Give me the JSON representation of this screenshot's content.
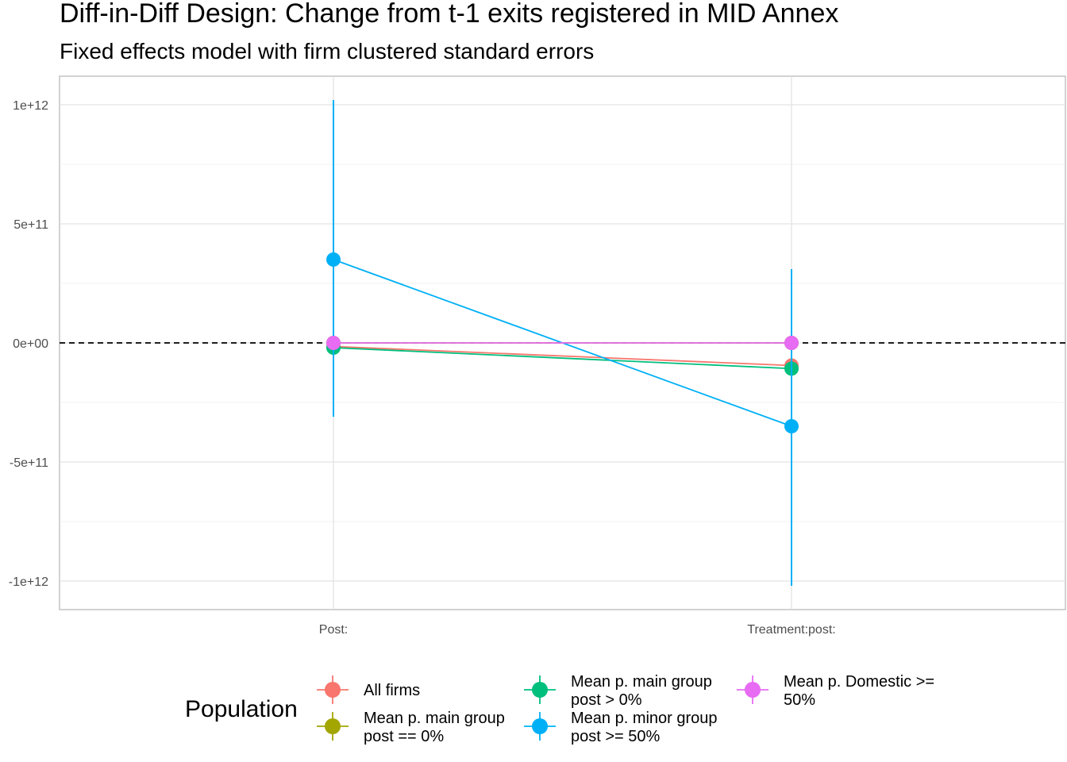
{
  "chart_data": {
    "type": "scatter",
    "title": "Diff-in-Diff Design: Change from t-1 exits registered in MID Annex",
    "subtitle": "Fixed effects model with firm clustered standard errors",
    "xlabel": "",
    "ylabel": "",
    "categories": [
      "Post:",
      "Treatment:post:"
    ],
    "ylim": [
      -1120000000000.0,
      1120000000000.0
    ],
    "y_ticks": [
      1000000000000.0,
      500000000000.0,
      0,
      -500000000000.0,
      -1000000000000.0
    ],
    "y_tick_labels": [
      "1e+12",
      "5e+11",
      "0e+00",
      "-5e+11",
      "-1e+12"
    ],
    "reference_line": {
      "y": 0,
      "style": "dashed",
      "color": "#000000"
    },
    "grid": true,
    "legend": {
      "title": "Population",
      "position": "bottom"
    },
    "series": [
      {
        "name": "All firms",
        "color": "#F8766D",
        "values": [
          -15000000000.0,
          -95000000000.0
        ],
        "lower": [
          -20000000000.0,
          -105000000000.0
        ],
        "upper": [
          -10000000000.0,
          -85000000000.0
        ]
      },
      {
        "name": "Mean p. main group post == 0%",
        "color": "#A3A500",
        "values": [
          0,
          0
        ],
        "lower": [
          0,
          0
        ],
        "upper": [
          0,
          0
        ]
      },
      {
        "name": "Mean p. main group post > 0%",
        "color": "#00BF7D",
        "values": [
          -20000000000.0,
          -108000000000.0
        ],
        "lower": [
          -25000000000.0,
          -118000000000.0
        ],
        "upper": [
          -15000000000.0,
          -98000000000.0
        ]
      },
      {
        "name": "Mean p. minor group post >= 50%",
        "color": "#00B0F6",
        "values": [
          350000000000.0,
          -350000000000.0
        ],
        "lower": [
          -310000000000.0,
          -1020000000000.0
        ],
        "upper": [
          1020000000000.0,
          310000000000.0
        ]
      },
      {
        "name": "Mean p. Domestic >= 50%",
        "color": "#E76BF3",
        "values": [
          0,
          0
        ],
        "lower": [
          -3000000000.0,
          -3000000000.0
        ],
        "upper": [
          3000000000.0,
          3000000000.0
        ]
      }
    ]
  },
  "legend_entries": [
    {
      "line1": "All firms",
      "line2": ""
    },
    {
      "line1": "Mean p. main group",
      "line2": "post == 0%"
    },
    {
      "line1": "Mean p. main group",
      "line2": "post > 0%"
    },
    {
      "line1": "Mean p. minor group",
      "line2": "post >= 50%"
    },
    {
      "line1": "Mean p. Domestic >=",
      "line2": "50%"
    }
  ]
}
